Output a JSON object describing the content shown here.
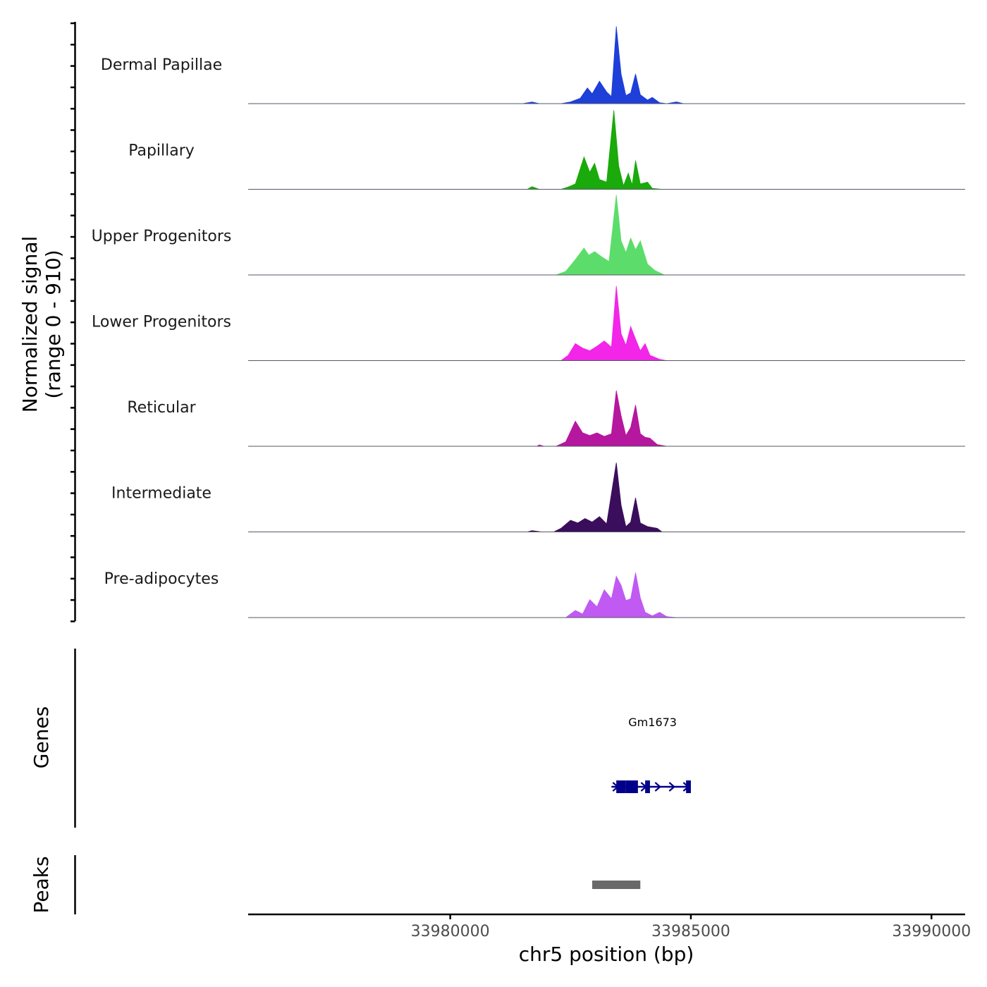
{
  "chart_data": {
    "type": "area",
    "title": "",
    "chromosome": "chr5",
    "xlabel": "chr5 position (bp)",
    "ylabel": "Normalized signal",
    "ylabel_range": "(range 0 - 910)",
    "y_range": [
      0,
      910
    ],
    "x_range": [
      33975800,
      33990700
    ],
    "x_ticks": [
      33980000,
      33985000,
      33990000
    ],
    "x_tick_labels": [
      "33980000",
      "33985000",
      "33990000"
    ],
    "series": [
      {
        "name": "Dermal Papillae",
        "color": "#1F3FD9",
        "values": [
          [
            33975800,
            0
          ],
          [
            33981500,
            0
          ],
          [
            33981700,
            18
          ],
          [
            33981850,
            0
          ],
          [
            33982300,
            0
          ],
          [
            33982500,
            20
          ],
          [
            33982700,
            60
          ],
          [
            33982850,
            175
          ],
          [
            33982950,
            110
          ],
          [
            33983100,
            250
          ],
          [
            33983250,
            130
          ],
          [
            33983350,
            80
          ],
          [
            33983450,
            860
          ],
          [
            33983550,
            330
          ],
          [
            33983650,
            90
          ],
          [
            33983750,
            120
          ],
          [
            33983850,
            330
          ],
          [
            33983950,
            100
          ],
          [
            33984100,
            40
          ],
          [
            33984200,
            70
          ],
          [
            33984350,
            10
          ],
          [
            33984500,
            0
          ],
          [
            33984700,
            20
          ],
          [
            33984850,
            0
          ],
          [
            33990700,
            0
          ]
        ]
      },
      {
        "name": "Papillary",
        "color": "#1AAA0B",
        "values": [
          [
            33975800,
            0
          ],
          [
            33981600,
            0
          ],
          [
            33981700,
            30
          ],
          [
            33981850,
            0
          ],
          [
            33982300,
            0
          ],
          [
            33982450,
            25
          ],
          [
            33982600,
            60
          ],
          [
            33982780,
            360
          ],
          [
            33982900,
            190
          ],
          [
            33983000,
            290
          ],
          [
            33983100,
            110
          ],
          [
            33983250,
            80
          ],
          [
            33983400,
            880
          ],
          [
            33983500,
            260
          ],
          [
            33983600,
            40
          ],
          [
            33983700,
            180
          ],
          [
            33983780,
            50
          ],
          [
            33983850,
            320
          ],
          [
            33983950,
            60
          ],
          [
            33984100,
            80
          ],
          [
            33984200,
            10
          ],
          [
            33984400,
            0
          ],
          [
            33990700,
            0
          ]
        ]
      },
      {
        "name": "Upper Progenitors",
        "color": "#5CDD6B",
        "values": [
          [
            33975800,
            0
          ],
          [
            33982200,
            0
          ],
          [
            33982400,
            40
          ],
          [
            33982600,
            170
          ],
          [
            33982780,
            300
          ],
          [
            33982880,
            220
          ],
          [
            33983000,
            260
          ],
          [
            33983150,
            200
          ],
          [
            33983300,
            150
          ],
          [
            33983450,
            890
          ],
          [
            33983550,
            380
          ],
          [
            33983650,
            250
          ],
          [
            33983750,
            410
          ],
          [
            33983850,
            280
          ],
          [
            33983950,
            380
          ],
          [
            33984100,
            120
          ],
          [
            33984250,
            50
          ],
          [
            33984450,
            0
          ],
          [
            33990700,
            0
          ]
        ]
      },
      {
        "name": "Lower Progenitors",
        "color": "#F225E8",
        "values": [
          [
            33975800,
            0
          ],
          [
            33982300,
            0
          ],
          [
            33982450,
            60
          ],
          [
            33982600,
            190
          ],
          [
            33982750,
            140
          ],
          [
            33982900,
            110
          ],
          [
            33983050,
            160
          ],
          [
            33983200,
            220
          ],
          [
            33983350,
            150
          ],
          [
            33983450,
            830
          ],
          [
            33983550,
            300
          ],
          [
            33983650,
            170
          ],
          [
            33983750,
            380
          ],
          [
            33983850,
            240
          ],
          [
            33983950,
            110
          ],
          [
            33984050,
            190
          ],
          [
            33984150,
            60
          ],
          [
            33984350,
            15
          ],
          [
            33984500,
            0
          ],
          [
            33990700,
            0
          ]
        ]
      },
      {
        "name": "Reticular",
        "color": "#B5179E",
        "values": [
          [
            33975800,
            0
          ],
          [
            33981800,
            0
          ],
          [
            33981850,
            15
          ],
          [
            33981950,
            0
          ],
          [
            33982200,
            0
          ],
          [
            33982400,
            50
          ],
          [
            33982600,
            280
          ],
          [
            33982750,
            150
          ],
          [
            33982900,
            120
          ],
          [
            33983050,
            150
          ],
          [
            33983200,
            110
          ],
          [
            33983350,
            140
          ],
          [
            33983450,
            620
          ],
          [
            33983550,
            340
          ],
          [
            33983650,
            120
          ],
          [
            33983750,
            210
          ],
          [
            33983850,
            460
          ],
          [
            33983950,
            140
          ],
          [
            33984050,
            100
          ],
          [
            33984150,
            90
          ],
          [
            33984300,
            20
          ],
          [
            33984500,
            0
          ],
          [
            33990700,
            0
          ]
        ]
      },
      {
        "name": "Intermediate",
        "color": "#3A0E5C",
        "values": [
          [
            33975800,
            0
          ],
          [
            33981600,
            0
          ],
          [
            33981700,
            15
          ],
          [
            33981900,
            0
          ],
          [
            33982150,
            0
          ],
          [
            33982300,
            40
          ],
          [
            33982500,
            130
          ],
          [
            33982650,
            100
          ],
          [
            33982800,
            150
          ],
          [
            33982950,
            110
          ],
          [
            33983100,
            170
          ],
          [
            33983250,
            90
          ],
          [
            33983450,
            770
          ],
          [
            33983550,
            300
          ],
          [
            33983650,
            60
          ],
          [
            33983750,
            110
          ],
          [
            33983850,
            380
          ],
          [
            33983950,
            100
          ],
          [
            33984100,
            60
          ],
          [
            33984300,
            40
          ],
          [
            33984400,
            0
          ],
          [
            33990700,
            0
          ]
        ]
      },
      {
        "name": "Pre-adipocytes",
        "color": "#C05AF2",
        "values": [
          [
            33975800,
            0
          ],
          [
            33982400,
            0
          ],
          [
            33982600,
            80
          ],
          [
            33982750,
            40
          ],
          [
            33982900,
            200
          ],
          [
            33983050,
            120
          ],
          [
            33983200,
            310
          ],
          [
            33983350,
            210
          ],
          [
            33983450,
            460
          ],
          [
            33983550,
            360
          ],
          [
            33983650,
            190
          ],
          [
            33983750,
            210
          ],
          [
            33983850,
            500
          ],
          [
            33983950,
            220
          ],
          [
            33984050,
            60
          ],
          [
            33984200,
            20
          ],
          [
            33984350,
            60
          ],
          [
            33984500,
            10
          ],
          [
            33984700,
            0
          ],
          [
            33990700,
            0
          ]
        ]
      }
    ],
    "genes": [
      {
        "name": "Gm1673",
        "color": "#00008B",
        "start": 33983350,
        "end": 33985000,
        "strand": "+",
        "exons": [
          [
            33983450,
            33983650
          ],
          [
            33983650,
            33983900
          ],
          [
            33984050,
            33984150
          ],
          [
            33984900,
            33985000
          ]
        ]
      }
    ],
    "peaks": [
      {
        "start": 33982950,
        "end": 33983950,
        "color": "#696969"
      }
    ],
    "panels": [
      "Genes",
      "Peaks"
    ]
  }
}
